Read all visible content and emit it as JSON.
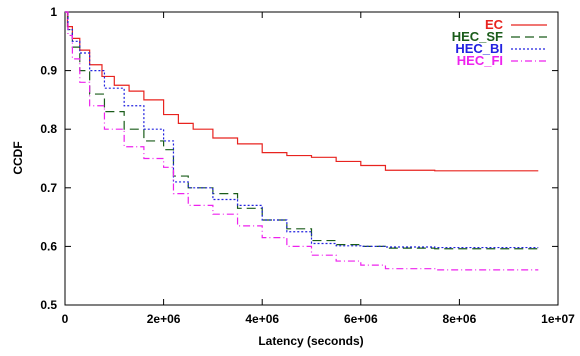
{
  "chart_data": {
    "type": "line",
    "xlabel": "Latency (seconds)",
    "ylabel": "CCDF",
    "xlim": [
      0,
      10000000
    ],
    "ylim": [
      0.5,
      1.0
    ],
    "x_ticks": [
      "0",
      "2e+06",
      "4e+06",
      "6e+06",
      "8e+06",
      "1e+07"
    ],
    "y_ticks": [
      "0.5",
      "0.6",
      "0.7",
      "0.8",
      "0.9",
      "1"
    ],
    "legend_position": "top-right",
    "grid": false,
    "series": [
      {
        "name": "EC",
        "color": "#e8231f",
        "dash": "solid",
        "points": [
          [
            0,
            1.0
          ],
          [
            50000,
            0.975
          ],
          [
            150000,
            0.955
          ],
          [
            300000,
            0.935
          ],
          [
            500000,
            0.91
          ],
          [
            750000,
            0.89
          ],
          [
            1000000,
            0.875
          ],
          [
            1300000,
            0.865
          ],
          [
            1600000,
            0.85
          ],
          [
            2000000,
            0.825
          ],
          [
            2300000,
            0.81
          ],
          [
            2600000,
            0.8
          ],
          [
            3000000,
            0.785
          ],
          [
            3500000,
            0.775
          ],
          [
            4000000,
            0.76
          ],
          [
            4500000,
            0.755
          ],
          [
            5000000,
            0.752
          ],
          [
            5500000,
            0.745
          ],
          [
            6000000,
            0.738
          ],
          [
            6500000,
            0.73
          ],
          [
            7500000,
            0.729
          ],
          [
            9600000,
            0.729
          ]
        ]
      },
      {
        "name": "HEC_SF",
        "color": "#1a5c1a",
        "dash": "long-dash",
        "points": [
          [
            0,
            1.0
          ],
          [
            60000,
            0.97
          ],
          [
            150000,
            0.94
          ],
          [
            300000,
            0.9
          ],
          [
            500000,
            0.86
          ],
          [
            800000,
            0.83
          ],
          [
            1200000,
            0.8
          ],
          [
            1600000,
            0.78
          ],
          [
            2000000,
            0.765
          ],
          [
            2200000,
            0.72
          ],
          [
            2500000,
            0.7
          ],
          [
            3000000,
            0.69
          ],
          [
            3500000,
            0.665
          ],
          [
            4000000,
            0.645
          ],
          [
            4500000,
            0.63
          ],
          [
            5000000,
            0.61
          ],
          [
            5500000,
            0.603
          ],
          [
            6000000,
            0.6
          ],
          [
            6500000,
            0.597
          ],
          [
            7500000,
            0.596
          ],
          [
            9600000,
            0.595
          ]
        ]
      },
      {
        "name": "HEC_BI",
        "color": "#2222e0",
        "dash": "dotted",
        "points": [
          [
            0,
            1.0
          ],
          [
            60000,
            0.97
          ],
          [
            150000,
            0.95
          ],
          [
            300000,
            0.93
          ],
          [
            500000,
            0.9
          ],
          [
            800000,
            0.87
          ],
          [
            1200000,
            0.84
          ],
          [
            1600000,
            0.8
          ],
          [
            2000000,
            0.78
          ],
          [
            2200000,
            0.71
          ],
          [
            2500000,
            0.7
          ],
          [
            3000000,
            0.68
          ],
          [
            3500000,
            0.67
          ],
          [
            4000000,
            0.645
          ],
          [
            4500000,
            0.625
          ],
          [
            5000000,
            0.605
          ],
          [
            5500000,
            0.601
          ],
          [
            6000000,
            0.6
          ],
          [
            6500000,
            0.599
          ],
          [
            7500000,
            0.598
          ],
          [
            9600000,
            0.598
          ]
        ]
      },
      {
        "name": "HEC_FI",
        "color": "#ee22ee",
        "dash": "dash-dot",
        "points": [
          [
            0,
            1.0
          ],
          [
            60000,
            0.96
          ],
          [
            150000,
            0.92
          ],
          [
            300000,
            0.88
          ],
          [
            500000,
            0.84
          ],
          [
            800000,
            0.8
          ],
          [
            1200000,
            0.77
          ],
          [
            1600000,
            0.75
          ],
          [
            2000000,
            0.735
          ],
          [
            2200000,
            0.69
          ],
          [
            2500000,
            0.67
          ],
          [
            3000000,
            0.655
          ],
          [
            3500000,
            0.635
          ],
          [
            4000000,
            0.615
          ],
          [
            4500000,
            0.6
          ],
          [
            5000000,
            0.585
          ],
          [
            5500000,
            0.575
          ],
          [
            6000000,
            0.568
          ],
          [
            6500000,
            0.562
          ],
          [
            7500000,
            0.56
          ],
          [
            9600000,
            0.56
          ]
        ]
      }
    ]
  }
}
